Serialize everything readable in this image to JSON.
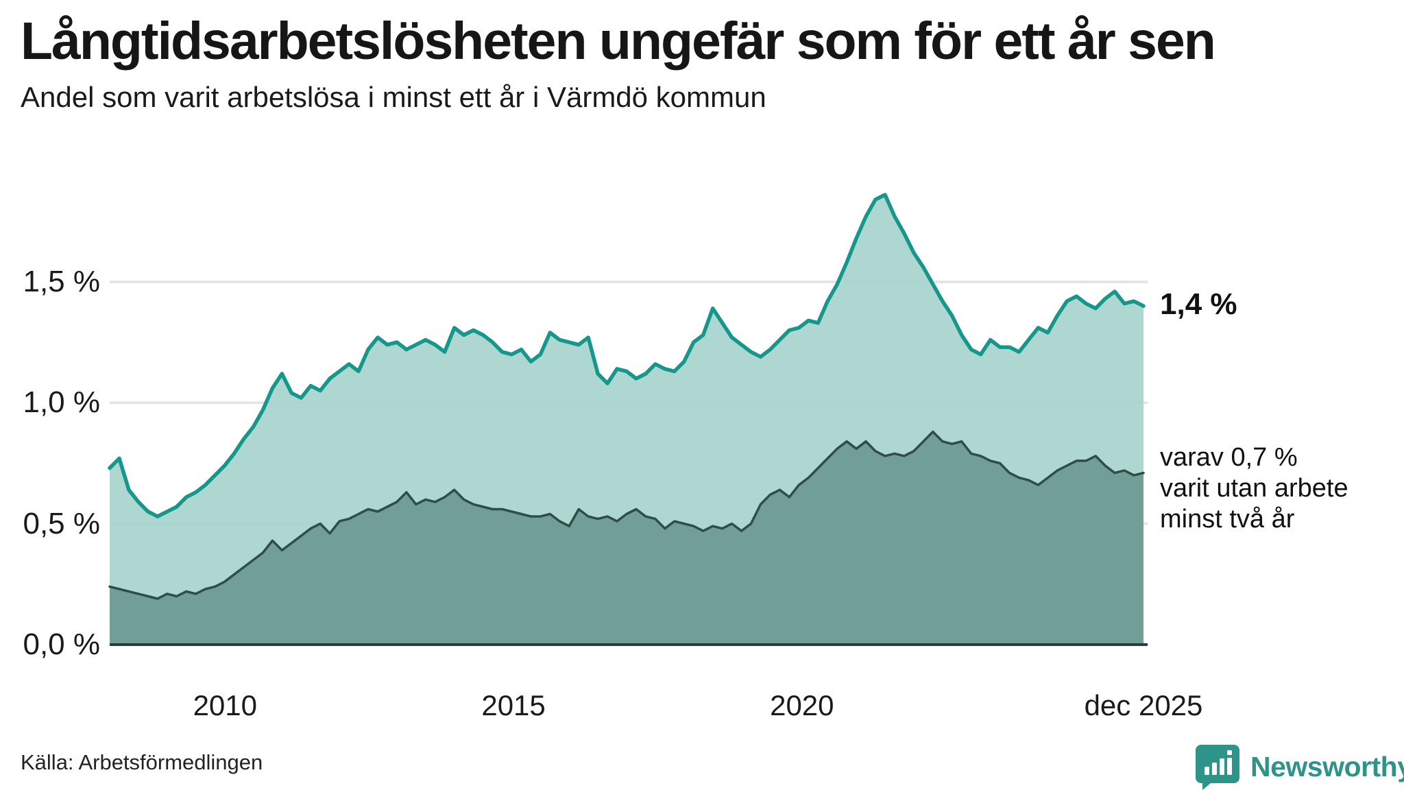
{
  "header": {
    "title": "Långtidsarbetslösheten ungefär som för ett år sen",
    "subtitle": "Andel som varit arbetslösa i minst ett år i Värmdö kommun"
  },
  "source": "Källa: Arbetsförmedlingen",
  "branding": {
    "name": "Newsworthy",
    "logo_icon": "bar-chart-speech-bubble",
    "logo_color": "#2e948a"
  },
  "annotations": {
    "total_end_label": "1,4 %",
    "total_end_value": 1.4,
    "subset_end_value": 0.7,
    "subset_lines": [
      "varav 0,7 %",
      "varit utan arbete",
      "minst två år"
    ]
  },
  "colors": {
    "total_line": "#16978b",
    "total_fill": "#a9d4cd",
    "subset_line": "#2d4e49",
    "subset_fill": "#6f9c96",
    "gridline": "#e2e2e6",
    "axis_line": "#20403c",
    "text": "#1a1a1a"
  },
  "chart_data": {
    "type": "area",
    "title": "Långtidsarbetslösheten ungefär som för ett år sen",
    "subtitle": "Andel som varit arbetslösa i minst ett år i Värmdö kommun",
    "x_unit": "year (monthly series)",
    "x_start": 2008.0,
    "x_end": 2025.92,
    "ylim": [
      0,
      1.95
    ],
    "grid": true,
    "legend_position": "right-edge-annotations",
    "xticks": [
      {
        "t": 2010.0,
        "label": "2010"
      },
      {
        "t": 2015.0,
        "label": "2015"
      },
      {
        "t": 2020.0,
        "label": "2020"
      },
      {
        "t": 2025.92,
        "label": "dec 2025"
      }
    ],
    "yticks": [
      {
        "v": 1.5,
        "label": "1,5 %"
      },
      {
        "v": 1.0,
        "label": "1,0 %"
      },
      {
        "v": 0.5,
        "label": "0,5 %"
      },
      {
        "v": 0.0,
        "label": "0,0 %"
      }
    ],
    "series": [
      {
        "name": "Andel som varit arbetslösa i minst ett år",
        "end_label": "1,4 %",
        "line_color": "#16978b",
        "fill_color": "#a9d4cd",
        "values": [
          0.73,
          0.77,
          0.64,
          0.59,
          0.55,
          0.53,
          0.55,
          0.57,
          0.61,
          0.63,
          0.66,
          0.7,
          0.74,
          0.79,
          0.85,
          0.9,
          0.97,
          1.06,
          1.12,
          1.04,
          1.02,
          1.07,
          1.05,
          1.1,
          1.13,
          1.16,
          1.13,
          1.22,
          1.27,
          1.24,
          1.25,
          1.22,
          1.24,
          1.26,
          1.24,
          1.21,
          1.31,
          1.28,
          1.3,
          1.28,
          1.25,
          1.21,
          1.2,
          1.22,
          1.17,
          1.2,
          1.29,
          1.26,
          1.25,
          1.24,
          1.27,
          1.12,
          1.08,
          1.14,
          1.13,
          1.1,
          1.12,
          1.16,
          1.14,
          1.13,
          1.17,
          1.25,
          1.28,
          1.39,
          1.33,
          1.27,
          1.24,
          1.21,
          1.19,
          1.22,
          1.26,
          1.3,
          1.31,
          1.34,
          1.33,
          1.42,
          1.49,
          1.58,
          1.68,
          1.77,
          1.84,
          1.86,
          1.77,
          1.7,
          1.62,
          1.56,
          1.49,
          1.42,
          1.36,
          1.28,
          1.22,
          1.2,
          1.26,
          1.23,
          1.23,
          1.21,
          1.26,
          1.31,
          1.29,
          1.36,
          1.42,
          1.44,
          1.41,
          1.39,
          1.43,
          1.46,
          1.41,
          1.42,
          1.4
        ]
      },
      {
        "name": "varav utan arbete minst två år",
        "end_label": "0,7 %",
        "line_color": "#2d4e49",
        "fill_color": "#6f9c96",
        "values": [
          0.24,
          0.23,
          0.22,
          0.21,
          0.2,
          0.19,
          0.21,
          0.2,
          0.22,
          0.21,
          0.23,
          0.24,
          0.26,
          0.29,
          0.32,
          0.35,
          0.38,
          0.43,
          0.39,
          0.42,
          0.45,
          0.48,
          0.5,
          0.46,
          0.51,
          0.52,
          0.54,
          0.56,
          0.55,
          0.57,
          0.59,
          0.63,
          0.58,
          0.6,
          0.59,
          0.61,
          0.64,
          0.6,
          0.58,
          0.57,
          0.56,
          0.56,
          0.55,
          0.54,
          0.53,
          0.53,
          0.54,
          0.51,
          0.49,
          0.56,
          0.53,
          0.52,
          0.53,
          0.51,
          0.54,
          0.56,
          0.53,
          0.52,
          0.48,
          0.51,
          0.5,
          0.49,
          0.47,
          0.49,
          0.48,
          0.5,
          0.47,
          0.5,
          0.58,
          0.62,
          0.64,
          0.61,
          0.66,
          0.69,
          0.73,
          0.77,
          0.81,
          0.84,
          0.81,
          0.84,
          0.8,
          0.78,
          0.79,
          0.78,
          0.8,
          0.84,
          0.88,
          0.84,
          0.83,
          0.84,
          0.79,
          0.78,
          0.76,
          0.75,
          0.71,
          0.69,
          0.68,
          0.66,
          0.69,
          0.72,
          0.74,
          0.76,
          0.76,
          0.78,
          0.74,
          0.71,
          0.72,
          0.7,
          0.71
        ]
      }
    ]
  }
}
